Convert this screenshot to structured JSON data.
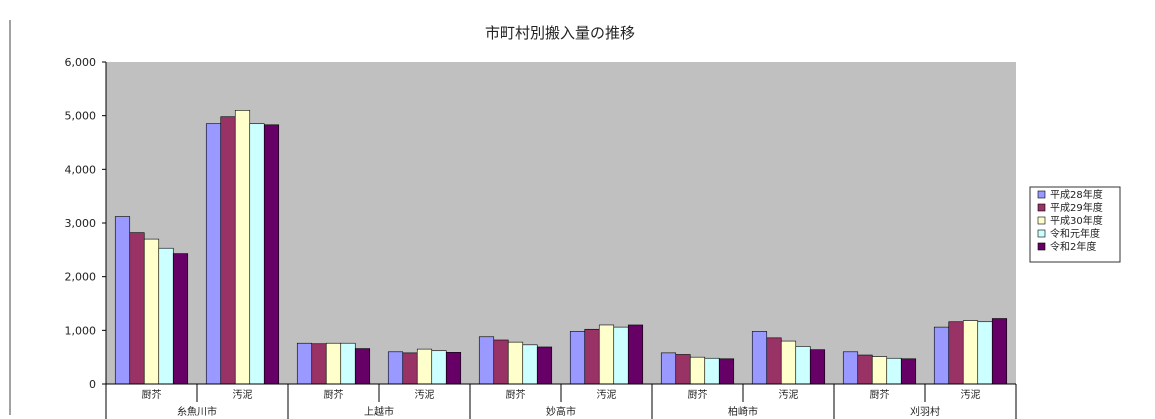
{
  "chart_data": {
    "type": "bar",
    "title": "市町村別搬入量の推移",
    "xlabel": "",
    "ylabel": "",
    "ylim": [
      0,
      6000
    ],
    "yticks": [
      "0",
      "1,000",
      "2,000",
      "3,000",
      "4,000",
      "5,000",
      "6,000"
    ],
    "grid": false,
    "legend_position": "right",
    "colors": [
      "#9999ff",
      "#993366",
      "#ffffcc",
      "#ccffff",
      "#660066"
    ],
    "groups": [
      "糸魚川市",
      "上越市",
      "妙高市",
      "柏崎市",
      "刈羽村"
    ],
    "categories": [
      "厨芥",
      "汚泥",
      "厨芥",
      "汚泥",
      "厨芥",
      "汚泥",
      "厨芥",
      "汚泥",
      "厨芥",
      "汚泥"
    ],
    "series": [
      {
        "name": "平成28年度",
        "values": [
          3120,
          4850,
          760,
          600,
          880,
          980,
          580,
          980,
          600,
          1060
        ]
      },
      {
        "name": "平成29年度",
        "values": [
          2820,
          4980,
          750,
          580,
          820,
          1020,
          550,
          860,
          540,
          1160
        ]
      },
      {
        "name": "平成30年度",
        "values": [
          2700,
          5100,
          760,
          650,
          780,
          1100,
          500,
          800,
          510,
          1180
        ]
      },
      {
        "name": "令和元年度",
        "values": [
          2530,
          4850,
          760,
          620,
          730,
          1060,
          480,
          700,
          480,
          1160
        ]
      },
      {
        "name": "令和2年度",
        "values": [
          2430,
          4830,
          660,
          590,
          690,
          1100,
          470,
          640,
          470,
          1220
        ]
      }
    ]
  }
}
